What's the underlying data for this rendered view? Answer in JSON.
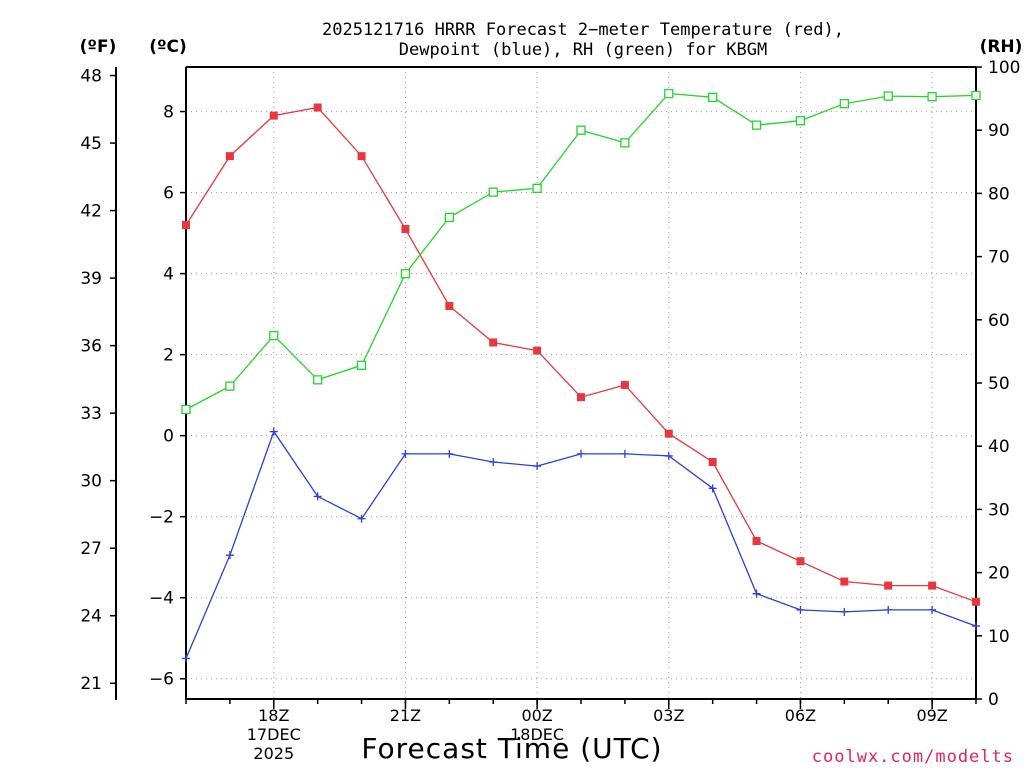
{
  "chart_data": {
    "type": "line",
    "title": "2025121716 HRRR Forecast 2−meter Temperature (red),",
    "title2": "Dewpoint (blue), RH (green) for KBGM",
    "xlabel": "Forecast Time (UTC)",
    "credit": "coolwx.com/modelts",
    "units": {
      "f": "(ºF)",
      "c": "(ºC)",
      "rh": "(RH)"
    },
    "x_hours": [
      16,
      17,
      18,
      19,
      20,
      21,
      22,
      23,
      24,
      25,
      26,
      27,
      28,
      29,
      30,
      31,
      32,
      33,
      34
    ],
    "xlim": [
      16,
      34
    ],
    "x_ticks": [
      {
        "hour": 18,
        "label": "18Z",
        "sub1": "17DEC",
        "sub2": "2025"
      },
      {
        "hour": 21,
        "label": "21Z"
      },
      {
        "hour": 24,
        "label": "00Z",
        "sub1": "18DEC"
      },
      {
        "hour": 27,
        "label": "03Z"
      },
      {
        "hour": 30,
        "label": "06Z"
      },
      {
        "hour": 33,
        "label": "09Z"
      }
    ],
    "ylim_c": [
      -6.5,
      9.1
    ],
    "yticks_c": [
      -6,
      -4,
      -2,
      0,
      2,
      4,
      6,
      8
    ],
    "yticks_c_labels": [
      "−6",
      "−4",
      "−2",
      "0",
      "2",
      "4",
      "6",
      "8"
    ],
    "yticks_f": [
      21,
      24,
      27,
      30,
      33,
      36,
      39,
      42,
      45,
      48
    ],
    "yticks_f_labels": [
      "21",
      "24",
      "27",
      "30",
      "33",
      "36",
      "39",
      "42",
      "45",
      "48"
    ],
    "ylim_rh": [
      0,
      100
    ],
    "yticks_rh": [
      0,
      10,
      20,
      30,
      40,
      50,
      60,
      70,
      80,
      90,
      100
    ],
    "yticks_rh_labels": [
      "0",
      "10",
      "20",
      "30",
      "40",
      "50",
      "60",
      "70",
      "80",
      "90",
      "100"
    ],
    "series": [
      {
        "name": "Temperature",
        "units": "C",
        "color": "#e8373d",
        "marker": "filled-square",
        "values": [
          5.2,
          6.9,
          7.9,
          8.1,
          6.9,
          5.1,
          3.2,
          2.3,
          2.1,
          0.95,
          1.25,
          0.05,
          -0.65,
          -2.6,
          -3.1,
          -3.6,
          -3.7,
          -3.7,
          -4.1
        ]
      },
      {
        "name": "Dewpoint",
        "units": "C",
        "color": "#2a3fe0",
        "marker": "plus",
        "values": [
          -5.5,
          -2.95,
          0.1,
          -1.5,
          -2.05,
          -0.45,
          -0.45,
          -0.65,
          -0.75,
          -0.45,
          -0.45,
          -0.5,
          -1.3,
          -3.9,
          -4.3,
          -4.35,
          -4.3,
          -4.3,
          -4.7
        ]
      },
      {
        "name": "RH",
        "units": "%",
        "color": "#22d62c",
        "marker": "open-square",
        "values": [
          45.8,
          49.5,
          57.5,
          50.5,
          52.8,
          67.3,
          76.2,
          80.2,
          80.8,
          90.0,
          88.0,
          95.8,
          95.2,
          90.8,
          91.5,
          94.2,
          95.4,
          95.3,
          95.5
        ]
      }
    ]
  }
}
